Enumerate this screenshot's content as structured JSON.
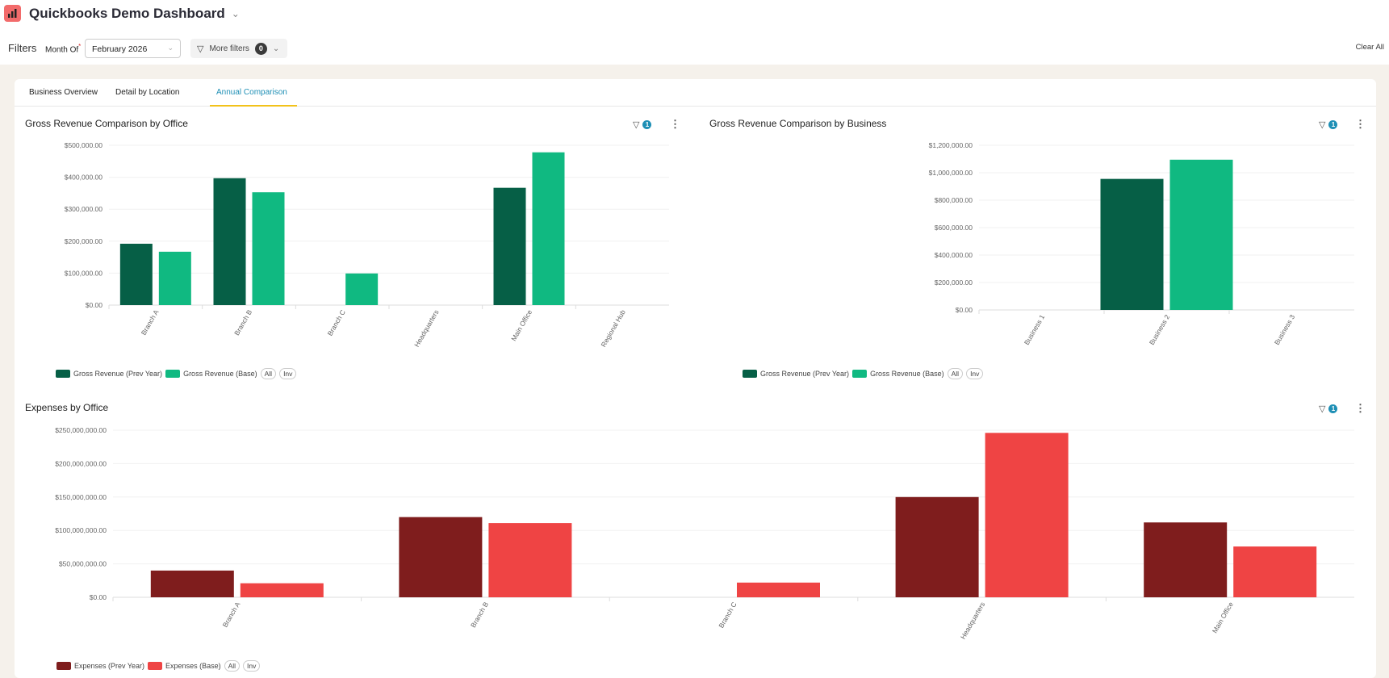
{
  "header": {
    "title": "Quickbooks Demo Dashboard",
    "app_icon": "bar-chart-icon"
  },
  "filters": {
    "label": "Filters",
    "month_label": "Month Of",
    "month_value": "February 2026",
    "more_filters_label": "More filters",
    "more_filters_count": "0",
    "clear_all": "Clear All"
  },
  "tabs": [
    {
      "label": "Business Overview"
    },
    {
      "label": "Detail by Location"
    },
    {
      "label": "Annual Comparison",
      "active": true
    }
  ],
  "colors": {
    "prev_green": "#065f46",
    "base_green": "#10b981",
    "prev_red": "#7f1d1d",
    "base_red": "#ef4444",
    "accent": "#1e8fb5",
    "tab_underline": "#f2c21b"
  },
  "chart_data": [
    {
      "type": "bar",
      "title": "Gross Revenue Comparison by Office",
      "filter_count": "1",
      "categories": [
        "Branch A",
        "Branch B",
        "Branch C",
        "Headquarters",
        "Main Office",
        "Regional Hub"
      ],
      "series": [
        {
          "name": "Gross Revenue (Prev Year)",
          "values": [
            192000,
            397000,
            0,
            0,
            367000,
            0
          ]
        },
        {
          "name": "Gross Revenue (Base)",
          "values": [
            167000,
            353000,
            99000,
            0,
            478000,
            0
          ]
        }
      ],
      "yticks": [
        "$0.00",
        "$100,000.00",
        "$200,000.00",
        "$300,000.00",
        "$400,000.00",
        "$500,000.00"
      ],
      "ylim": [
        0,
        500000
      ],
      "grid": true,
      "legend": "bottom-left",
      "legend_extras": [
        "All",
        "Inv"
      ]
    },
    {
      "type": "bar",
      "title": "Gross Revenue Comparison by Business",
      "filter_count": "1",
      "categories": [
        "Business 1",
        "Business 2",
        "Business 3"
      ],
      "series": [
        {
          "name": "Gross Revenue (Prev Year)",
          "values": [
            0,
            955000,
            0
          ]
        },
        {
          "name": "Gross Revenue (Base)",
          "values": [
            0,
            1095000,
            0
          ]
        }
      ],
      "yticks": [
        "$0.00",
        "$200,000.00",
        "$400,000.00",
        "$600,000.00",
        "$800,000.00",
        "$1,000,000.00",
        "$1,200,000.00"
      ],
      "ylim": [
        0,
        1200000
      ],
      "grid": true,
      "legend": "bottom-left",
      "legend_extras": [
        "All",
        "Inv"
      ]
    },
    {
      "type": "bar",
      "title": "Expenses by Office",
      "filter_count": "1",
      "categories": [
        "Branch A",
        "Branch B",
        "Branch C",
        "Headquarters",
        "Main Office"
      ],
      "series": [
        {
          "name": "Expenses (Prev Year)",
          "values": [
            40000000,
            120000000,
            0,
            150000000,
            112000000
          ]
        },
        {
          "name": "Expenses (Base)",
          "values": [
            21000000,
            111000000,
            22000000,
            246000000,
            76000000
          ]
        }
      ],
      "yticks": [
        "$0.00",
        "$50,000,000.00",
        "$100,000,000.00",
        "$150,000,000.00",
        "$200,000,000.00",
        "$250,000,000.00"
      ],
      "ylim": [
        0,
        250000000
      ],
      "grid": true,
      "legend": "bottom-left",
      "legend_extras": [
        "All",
        "Inv"
      ]
    }
  ]
}
